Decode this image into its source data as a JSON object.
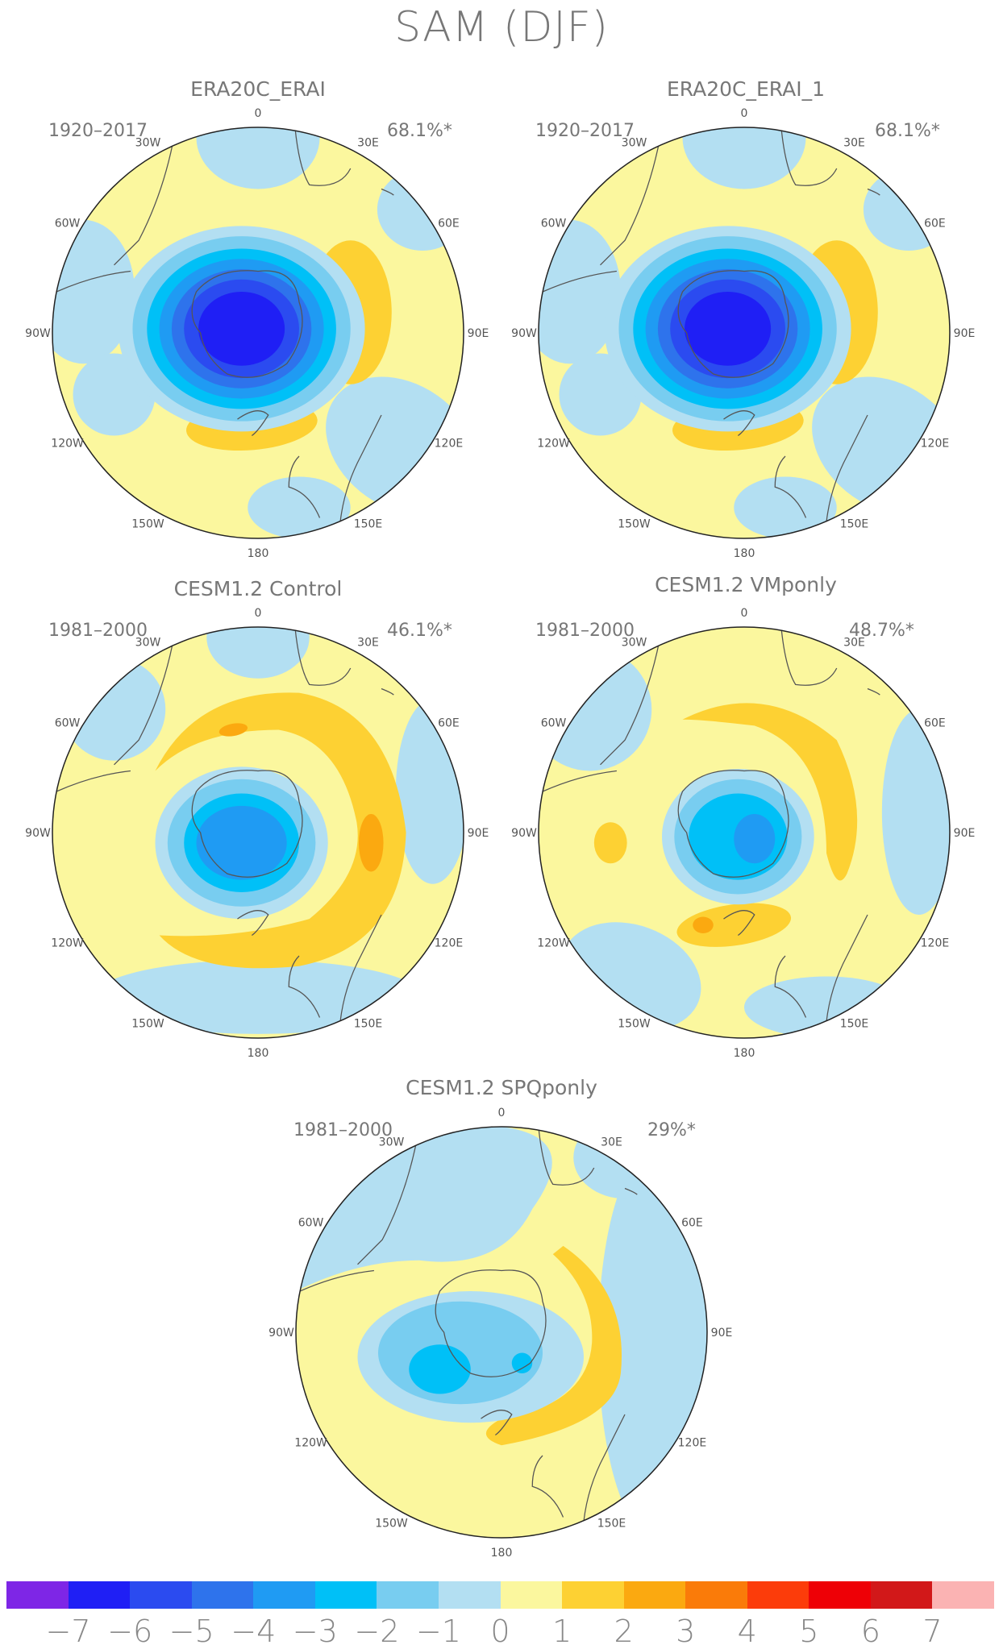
{
  "title": "SAM (DJF)",
  "colors": {
    "bins": [
      "#7e26e6",
      "#1f1ff5",
      "#2b4bf0",
      "#2e73ec",
      "#1f9bf3",
      "#00c0f7",
      "#78cdf0",
      "#b3dff2",
      "#fbf79e",
      "#fdd133",
      "#fba910",
      "#fa7b09",
      "#fc3c0a",
      "#ee0006",
      "#d21819",
      "#fbb3b3"
    ],
    "coast": "#555555"
  },
  "colorbar": {
    "tick_labels": [
      "−7",
      "−6",
      "−5",
      "−4",
      "−3",
      "−2",
      "−1",
      "0",
      "1",
      "2",
      "3",
      "4",
      "5",
      "6",
      "7"
    ]
  },
  "panels": [
    {
      "id": "era20c-erai",
      "title": "ERA20C_ERAI",
      "period": "1920–2017",
      "variance": "68.1%*",
      "pattern": "era"
    },
    {
      "id": "era20c-erai-1",
      "title": "ERA20C_ERAI_1",
      "period": "1920–2017",
      "variance": "68.1%*",
      "pattern": "era"
    },
    {
      "id": "cesm-control",
      "title": "CESM1.2 Control",
      "period": "1981–2000",
      "variance": "46.1%*",
      "pattern": "control"
    },
    {
      "id": "cesm-vmponly",
      "title": "CESM1.2 VMponly",
      "period": "1981–2000",
      "variance": "48.7%*",
      "pattern": "vmp"
    },
    {
      "id": "cesm-spqponly",
      "title": "CESM1.2 SPQponly",
      "period": "1981–2000",
      "variance": "29%*",
      "pattern": "spq"
    }
  ],
  "lon_labels": [
    "0",
    "30E",
    "60E",
    "90E",
    "120E",
    "150E",
    "180",
    "150W",
    "120W",
    "90W",
    "60W",
    "30W"
  ]
}
